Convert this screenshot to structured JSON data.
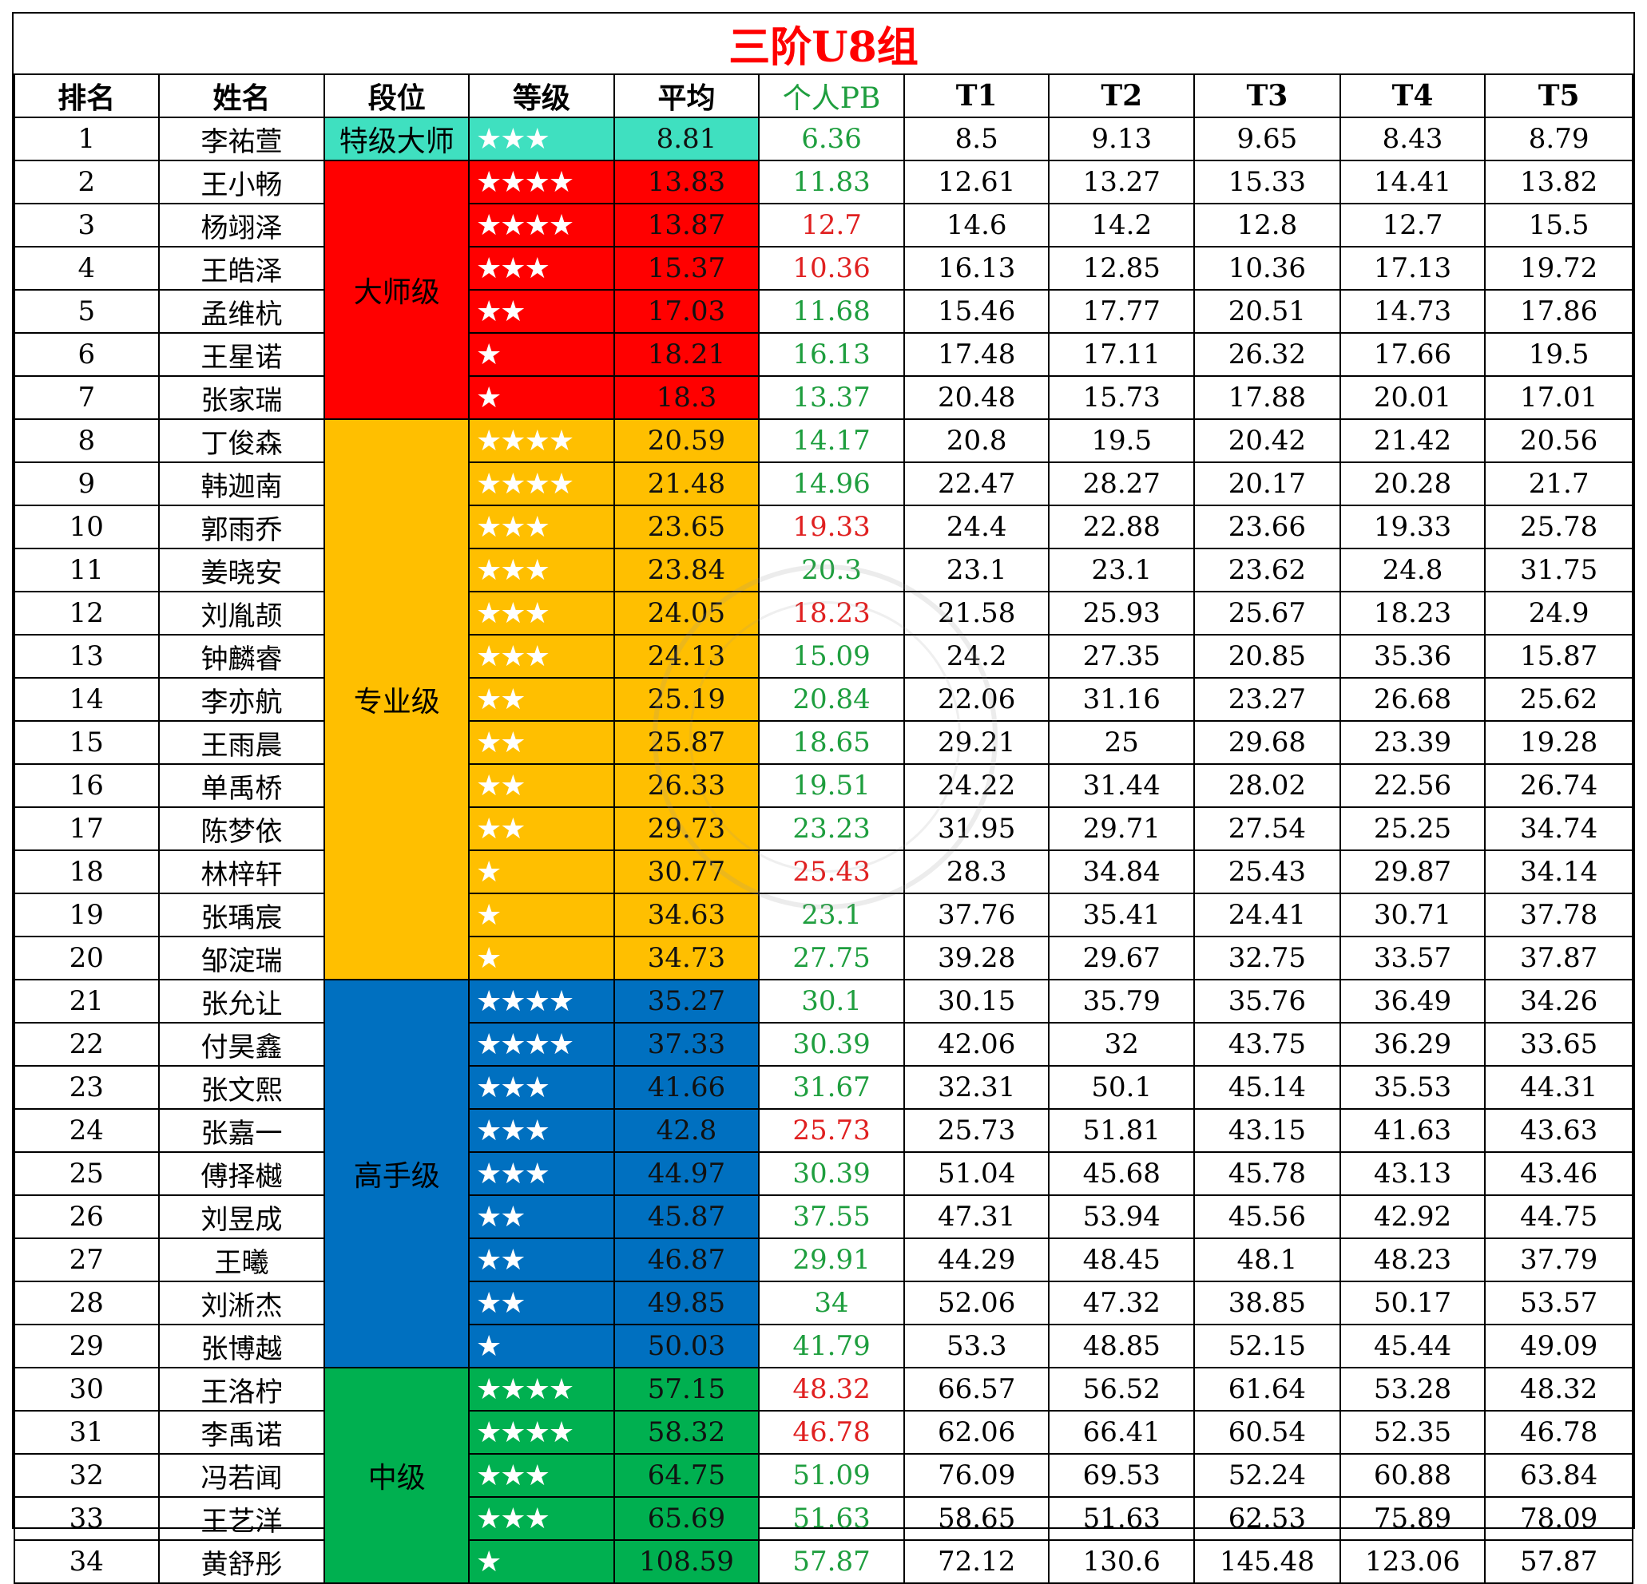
{
  "title": "三阶U8组",
  "headers": [
    "排名",
    "姓名",
    "段位",
    "等级",
    "平均",
    "个人PB",
    "T1",
    "T2",
    "T3",
    "T4",
    "T5"
  ],
  "colors": {
    "teal": "#3fe0c0",
    "red": "#ff0000",
    "amber": "#ffbf00",
    "blue": "#0070c0",
    "green": "#00b050",
    "pb_green": "#1e9e3e",
    "pb_red": "#e02020",
    "title": "#ff0000"
  },
  "tiers": [
    {
      "label": "特级大师",
      "color": "teal",
      "rows": 1
    },
    {
      "label": "大师级",
      "color": "red",
      "rows": 6
    },
    {
      "label": "专业级",
      "color": "amber",
      "rows": 13
    },
    {
      "label": "高手级",
      "color": "blue",
      "rows": 9
    },
    {
      "label": "中级",
      "color": "green",
      "rows": 5
    }
  ],
  "rows": [
    {
      "rank": "1",
      "name": "李祐萱",
      "stars": "★★★",
      "avg": "8.81",
      "pb": "6.36",
      "pb_color": "green",
      "t": [
        "8.5",
        "9.13",
        "9.65",
        "8.43",
        "8.79"
      ]
    },
    {
      "rank": "2",
      "name": "王小畅",
      "stars": "★★★★",
      "avg": "13.83",
      "pb": "11.83",
      "pb_color": "green",
      "t": [
        "12.61",
        "13.27",
        "15.33",
        "14.41",
        "13.82"
      ]
    },
    {
      "rank": "3",
      "name": "杨翊泽",
      "stars": "★★★★",
      "avg": "13.87",
      "pb": "12.7",
      "pb_color": "red",
      "t": [
        "14.6",
        "14.2",
        "12.8",
        "12.7",
        "15.5"
      ]
    },
    {
      "rank": "4",
      "name": "王皓泽",
      "stars": "★★★",
      "avg": "15.37",
      "pb": "10.36",
      "pb_color": "red",
      "t": [
        "16.13",
        "12.85",
        "10.36",
        "17.13",
        "19.72"
      ]
    },
    {
      "rank": "5",
      "name": "孟维杭",
      "stars": "★★",
      "avg": "17.03",
      "pb": "11.68",
      "pb_color": "green",
      "t": [
        "15.46",
        "17.77",
        "20.51",
        "14.73",
        "17.86"
      ]
    },
    {
      "rank": "6",
      "name": "王星诺",
      "stars": "★",
      "avg": "18.21",
      "pb": "16.13",
      "pb_color": "green",
      "t": [
        "17.48",
        "17.11",
        "26.32",
        "17.66",
        "19.5"
      ]
    },
    {
      "rank": "7",
      "name": "张家瑞",
      "stars": "★",
      "avg": "18.3",
      "pb": "13.37",
      "pb_color": "green",
      "t": [
        "20.48",
        "15.73",
        "17.88",
        "20.01",
        "17.01"
      ]
    },
    {
      "rank": "8",
      "name": "丁俊森",
      "stars": "★★★★",
      "avg": "20.59",
      "pb": "14.17",
      "pb_color": "green",
      "t": [
        "20.8",
        "19.5",
        "20.42",
        "21.42",
        "20.56"
      ]
    },
    {
      "rank": "9",
      "name": "韩迦南",
      "stars": "★★★★",
      "avg": "21.48",
      "pb": "14.96",
      "pb_color": "green",
      "t": [
        "22.47",
        "28.27",
        "20.17",
        "20.28",
        "21.7"
      ]
    },
    {
      "rank": "10",
      "name": "郭雨乔",
      "stars": "★★★",
      "avg": "23.65",
      "pb": "19.33",
      "pb_color": "red",
      "t": [
        "24.4",
        "22.88",
        "23.66",
        "19.33",
        "25.78"
      ]
    },
    {
      "rank": "11",
      "name": "姜晓安",
      "stars": "★★★",
      "avg": "23.84",
      "pb": "20.3",
      "pb_color": "green",
      "t": [
        "23.1",
        "23.1",
        "23.62",
        "24.8",
        "31.75"
      ]
    },
    {
      "rank": "12",
      "name": "刘胤颉",
      "stars": "★★★",
      "avg": "24.05",
      "pb": "18.23",
      "pb_color": "red",
      "t": [
        "21.58",
        "25.93",
        "25.67",
        "18.23",
        "24.9"
      ]
    },
    {
      "rank": "13",
      "name": "钟麟睿",
      "stars": "★★★",
      "avg": "24.13",
      "pb": "15.09",
      "pb_color": "green",
      "t": [
        "24.2",
        "27.35",
        "20.85",
        "35.36",
        "15.87"
      ]
    },
    {
      "rank": "14",
      "name": "李亦航",
      "stars": "★★",
      "avg": "25.19",
      "pb": "20.84",
      "pb_color": "green",
      "t": [
        "22.06",
        "31.16",
        "23.27",
        "26.68",
        "25.62"
      ]
    },
    {
      "rank": "15",
      "name": "王雨晨",
      "stars": "★★",
      "avg": "25.87",
      "pb": "18.65",
      "pb_color": "green",
      "t": [
        "29.21",
        "25",
        "29.68",
        "23.39",
        "19.28"
      ]
    },
    {
      "rank": "16",
      "name": "单禹桥",
      "stars": "★★",
      "avg": "26.33",
      "pb": "19.51",
      "pb_color": "green",
      "t": [
        "24.22",
        "31.44",
        "28.02",
        "22.56",
        "26.74"
      ]
    },
    {
      "rank": "17",
      "name": "陈梦依",
      "stars": "★★",
      "avg": "29.73",
      "pb": "23.23",
      "pb_color": "green",
      "t": [
        "31.95",
        "29.71",
        "27.54",
        "25.25",
        "34.74"
      ]
    },
    {
      "rank": "18",
      "name": "林梓轩",
      "stars": "★",
      "avg": "30.77",
      "pb": "25.43",
      "pb_color": "red",
      "t": [
        "28.3",
        "34.84",
        "25.43",
        "29.87",
        "34.14"
      ]
    },
    {
      "rank": "19",
      "name": "张瑀宸",
      "stars": "★",
      "avg": "34.63",
      "pb": "23.1",
      "pb_color": "green",
      "t": [
        "37.76",
        "35.41",
        "24.41",
        "30.71",
        "37.78"
      ]
    },
    {
      "rank": "20",
      "name": "邹淀瑞",
      "stars": "★",
      "avg": "34.73",
      "pb": "27.75",
      "pb_color": "green",
      "t": [
        "39.28",
        "29.67",
        "32.75",
        "33.57",
        "37.87"
      ]
    },
    {
      "rank": "21",
      "name": "张允让",
      "stars": "★★★★",
      "avg": "35.27",
      "pb": "30.1",
      "pb_color": "green",
      "t": [
        "30.15",
        "35.79",
        "35.76",
        "36.49",
        "34.26"
      ]
    },
    {
      "rank": "22",
      "name": "付昊鑫",
      "stars": "★★★★",
      "avg": "37.33",
      "pb": "30.39",
      "pb_color": "green",
      "t": [
        "42.06",
        "32",
        "43.75",
        "36.29",
        "33.65"
      ]
    },
    {
      "rank": "23",
      "name": "张文熙",
      "stars": "★★★",
      "avg": "41.66",
      "pb": "31.67",
      "pb_color": "green",
      "t": [
        "32.31",
        "50.1",
        "45.14",
        "35.53",
        "44.31"
      ]
    },
    {
      "rank": "24",
      "name": "张嘉一",
      "stars": "★★★",
      "avg": "42.8",
      "pb": "25.73",
      "pb_color": "red",
      "t": [
        "25.73",
        "51.81",
        "43.15",
        "41.63",
        "43.63"
      ]
    },
    {
      "rank": "25",
      "name": "傅择樾",
      "stars": "★★★",
      "avg": "44.97",
      "pb": "30.39",
      "pb_color": "green",
      "t": [
        "51.04",
        "45.68",
        "45.78",
        "43.13",
        "43.46"
      ]
    },
    {
      "rank": "26",
      "name": "刘昱成",
      "stars": "★★",
      "avg": "45.87",
      "pb": "37.55",
      "pb_color": "green",
      "t": [
        "47.31",
        "53.94",
        "45.56",
        "42.92",
        "44.75"
      ]
    },
    {
      "rank": "27",
      "name": "王曦",
      "stars": "★★",
      "avg": "46.87",
      "pb": "29.91",
      "pb_color": "green",
      "t": [
        "44.29",
        "48.45",
        "48.1",
        "48.23",
        "37.79"
      ]
    },
    {
      "rank": "28",
      "name": "刘淅杰",
      "stars": "★★",
      "avg": "49.85",
      "pb": "34",
      "pb_color": "green",
      "t": [
        "52.06",
        "47.32",
        "38.85",
        "50.17",
        "53.57"
      ]
    },
    {
      "rank": "29",
      "name": "张博越",
      "stars": "★",
      "avg": "50.03",
      "pb": "41.79",
      "pb_color": "green",
      "t": [
        "53.3",
        "48.85",
        "52.15",
        "45.44",
        "49.09"
      ]
    },
    {
      "rank": "30",
      "name": "王洛柠",
      "stars": "★★★★",
      "avg": "57.15",
      "pb": "48.32",
      "pb_color": "red",
      "t": [
        "66.57",
        "56.52",
        "61.64",
        "53.28",
        "48.32"
      ]
    },
    {
      "rank": "31",
      "name": "李禹诺",
      "stars": "★★★★",
      "avg": "58.32",
      "pb": "46.78",
      "pb_color": "red",
      "t": [
        "62.06",
        "66.41",
        "60.54",
        "52.35",
        "46.78"
      ]
    },
    {
      "rank": "32",
      "name": "冯若闻",
      "stars": "★★★",
      "avg": "64.75",
      "pb": "51.09",
      "pb_color": "green",
      "t": [
        "76.09",
        "69.53",
        "52.24",
        "60.88",
        "63.84"
      ]
    },
    {
      "rank": "33",
      "name": "王艺洋",
      "stars": "★★★",
      "avg": "65.69",
      "pb": "51.63",
      "pb_color": "green",
      "t": [
        "58.65",
        "51.63",
        "62.53",
        "75.89",
        "78.09"
      ]
    },
    {
      "rank": "34",
      "name": "黄舒彤",
      "stars": "★",
      "avg": "108.59",
      "pb": "57.87",
      "pb_color": "green",
      "t": [
        "72.12",
        "130.6",
        "145.48",
        "123.06",
        "57.87"
      ]
    }
  ]
}
